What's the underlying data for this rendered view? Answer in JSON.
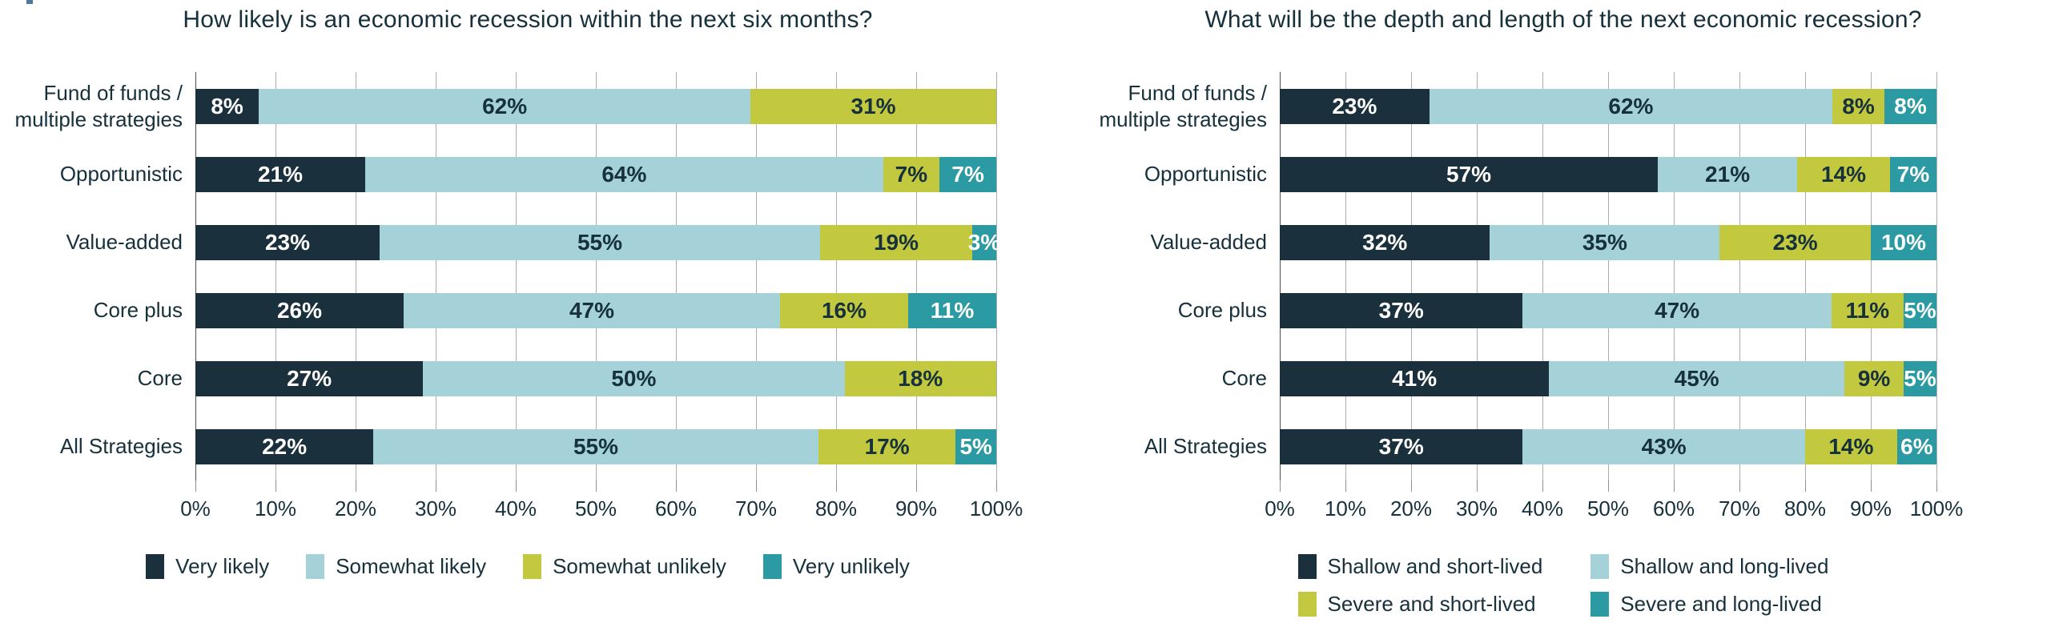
{
  "colors": {
    "dark_navy": "#1A303C",
    "light_blue": "#A5D2D8",
    "olive": "#C2C93F",
    "teal": "#2B9AA3",
    "text": "#16303C",
    "gridline": "#ACACAC",
    "axis_line": "#4E4E4E"
  },
  "chart_data": [
    {
      "type": "bar",
      "orientation": "horizontal",
      "stacked": true,
      "title": "How likely is an economic recession within the next six months?",
      "categories": [
        "Fund of funds /\nmultiple strategies",
        "Opportunistic",
        "Value-added",
        "Core plus",
        "Core",
        "All Strategies"
      ],
      "series": [
        {
          "name": "Very likely",
          "color": "#1A303C",
          "label_color": "#FFFFFF",
          "values": [
            8,
            21,
            23,
            26,
            27,
            22
          ]
        },
        {
          "name": "Somewhat likely",
          "color": "#A5D2D8",
          "label_color": "#16303C",
          "values": [
            62,
            64,
            55,
            47,
            50,
            55
          ]
        },
        {
          "name": "Somewhat unlikely",
          "color": "#C2C93F",
          "label_color": "#16303C",
          "values": [
            31,
            7,
            19,
            16,
            18,
            17
          ]
        },
        {
          "name": "Very unlikely",
          "color": "#2B9AA3",
          "label_color": "#FFFFFF",
          "values": [
            null,
            7,
            3,
            11,
            null,
            5
          ]
        }
      ],
      "value_label_format": "percent",
      "xlim": [
        0,
        100
      ],
      "x_ticks": [
        "0%",
        "10%",
        "20%",
        "30%",
        "40%",
        "50%",
        "60%",
        "70%",
        "80%",
        "90%",
        "100%"
      ],
      "grid": "vertical",
      "legend_position": "bottom",
      "legend_layout": "single-row"
    },
    {
      "type": "bar",
      "orientation": "horizontal",
      "stacked": true,
      "title": "What will be the depth and length of the next economic recession?",
      "categories": [
        "Fund of funds /\nmultiple strategies",
        "Opportunistic",
        "Value-added",
        "Core plus",
        "Core",
        "All Strategies"
      ],
      "series": [
        {
          "name": "Shallow and short-lived",
          "color": "#1A303C",
          "label_color": "#FFFFFF",
          "values": [
            23,
            57,
            32,
            37,
            41,
            37
          ]
        },
        {
          "name": "Shallow and long-lived",
          "color": "#A5D2D8",
          "label_color": "#16303C",
          "values": [
            62,
            21,
            35,
            47,
            45,
            43
          ]
        },
        {
          "name": "Severe and short-lived",
          "color": "#C2C93F",
          "label_color": "#16303C",
          "values": [
            8,
            14,
            23,
            11,
            9,
            14
          ]
        },
        {
          "name": "Severe and long-lived",
          "color": "#2B9AA3",
          "label_color": "#FFFFFF",
          "values": [
            8,
            7,
            10,
            5,
            5,
            6
          ]
        }
      ],
      "value_label_format": "percent",
      "xlim": [
        0,
        100
      ],
      "x_ticks": [
        "0%",
        "10%",
        "20%",
        "30%",
        "40%",
        "50%",
        "60%",
        "70%",
        "80%",
        "90%",
        "100%"
      ],
      "grid": "vertical",
      "legend_position": "bottom",
      "legend_layout": "two-rows"
    }
  ]
}
